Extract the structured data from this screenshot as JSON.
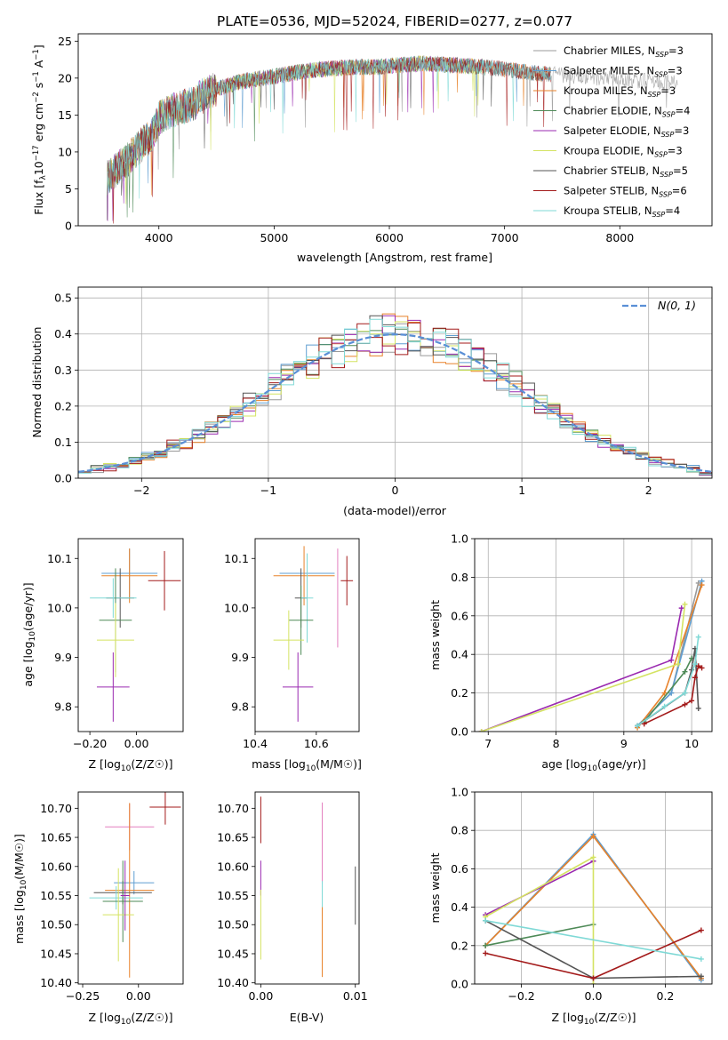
{
  "figure_title": "PLATE=0536, MJD=52024, FIBERID=0277, z=0.077",
  "model_colors": {
    "Chabrier MILES": "#999999",
    "Salpeter MILES": "#5f9ed1",
    "Kroupa MILES": "#e8822a",
    "Chabrier ELODIE": "#4e8a57",
    "Salpeter ELODIE": "#9a2ab0",
    "Kroupa ELODIE": "#d4e362",
    "Chabrier STELIB": "#555555",
    "Salpeter STELIB": "#a31a1a",
    "Kroupa STELIB": "#7fd9d6",
    "Kroupa STELIB pink": "#e37fbf",
    "normal": "#5a8fd6"
  },
  "chart_data": [
    {
      "id": "spectrum",
      "type": "line",
      "title": "PLATE=0536, MJD=52024, FIBERID=0277, z=0.077",
      "xlabel": "wavelength [Angstrom, rest frame]",
      "ylabel_parts": [
        "Flux [f",
        "λ",
        "10",
        "−17",
        " erg cm",
        "−2",
        " s",
        "−1",
        " A",
        "−1",
        "]"
      ],
      "xlim": [
        3300,
        8800
      ],
      "ylim": [
        0,
        26
      ],
      "xticks": [
        4000,
        5000,
        6000,
        7000,
        8000
      ],
      "yticks": [
        0,
        5,
        10,
        15,
        20,
        25
      ],
      "grid": false,
      "legend_position": "right",
      "envelope": {
        "x": [
          3550,
          3700,
          3850,
          3950,
          4000,
          4100,
          4200,
          4300,
          4400,
          4500,
          4700,
          4900,
          5100,
          5300,
          5500,
          5700,
          5900,
          6100,
          6300,
          6500,
          6700,
          6900,
          7100,
          7300,
          7500,
          7700,
          7900,
          8100,
          8300,
          8500
        ],
        "y": [
          6.5,
          8.5,
          11.0,
          12.5,
          14.5,
          15.5,
          16.0,
          16.5,
          18.0,
          18.5,
          19.5,
          20.0,
          20.5,
          21.0,
          21.3,
          21.5,
          21.5,
          21.8,
          22.0,
          21.8,
          21.6,
          21.4,
          21.0,
          20.6,
          20.4,
          20.1,
          19.9,
          19.7,
          19.5,
          19.3
        ]
      },
      "series": [
        {
          "name": "Chabrier MILES",
          "nssp": "3",
          "color": "#999999",
          "xmax": 8500
        },
        {
          "name": "Salpeter MILES",
          "nssp": "3",
          "color": "#5f9ed1",
          "xmax": 7400
        },
        {
          "name": "Kroupa MILES",
          "nssp": "3",
          "color": "#e8822a",
          "xmax": 7400
        },
        {
          "name": "Chabrier ELODIE",
          "nssp": "4",
          "color": "#4e8a57",
          "xmax": 6800
        },
        {
          "name": "Salpeter ELODIE",
          "nssp": "3",
          "color": "#9a2ab0",
          "xmax": 6800
        },
        {
          "name": "Kroupa ELODIE",
          "nssp": "3",
          "color": "#d4e362",
          "xmax": 6800
        },
        {
          "name": "Chabrier STELIB",
          "nssp": "5",
          "color": "#555555",
          "xmax": 7400
        },
        {
          "name": "Salpeter STELIB",
          "nssp": "6",
          "color": "#a31a1a",
          "xmax": 7400
        },
        {
          "name": "Kroupa STELIB",
          "nssp": "4",
          "color": "#7fd9d6",
          "xmax": 7400
        }
      ],
      "legend_sub": "SSP"
    },
    {
      "id": "residuals",
      "type": "line",
      "xlabel": "(data-model)/error",
      "ylabel": "Normed distribution",
      "xlim": [
        -2.5,
        2.5
      ],
      "ylim": [
        0,
        0.53
      ],
      "xticks": [
        -2,
        -1,
        0,
        1,
        2
      ],
      "yticks": [
        0.0,
        0.1,
        0.2,
        0.3,
        0.4,
        0.5
      ],
      "grid": true,
      "legend_position": "top-right",
      "legend_label": "N(0, 1)",
      "bin_width": 0.1,
      "histogram_colors": [
        "#999999",
        "#5f9ed1",
        "#e8822a",
        "#4e8a57",
        "#9a2ab0",
        "#d4e362",
        "#555555",
        "#a31a1a",
        "#7fd9d6"
      ]
    },
    {
      "id": "age_vs_z",
      "type": "scatter",
      "xlabel": "Z [log10(Z/Z☉)]",
      "ylabel": "age  [log10(age/yr)]",
      "xlim": [
        -0.25,
        0.2
      ],
      "ylim": [
        9.75,
        10.14
      ],
      "xticks": [
        -0.2,
        0.0
      ],
      "yticks": [
        9.8,
        9.9,
        10.0,
        10.1
      ],
      "points": [
        {
          "x": -0.03,
          "y": 10.07,
          "xerr": 0.12,
          "yerr": 0.05,
          "color": "#5f9ed1"
        },
        {
          "x": -0.03,
          "y": 10.065,
          "xerr": 0.12,
          "yerr": 0.055,
          "color": "#e8822a"
        },
        {
          "x": 0.12,
          "y": 10.055,
          "xerr": 0.07,
          "yerr": 0.06,
          "color": "#a31a1a"
        },
        {
          "x": -0.07,
          "y": 10.02,
          "xerr": 0.06,
          "yerr": 0.06,
          "color": "#555555"
        },
        {
          "x": -0.1,
          "y": 10.02,
          "xerr": 0.1,
          "yerr": 0.04,
          "color": "#7fd9d6"
        },
        {
          "x": -0.09,
          "y": 9.975,
          "xerr": 0.07,
          "yerr": 0.105,
          "color": "#4e8a57"
        },
        {
          "x": -0.09,
          "y": 9.935,
          "xerr": 0.08,
          "yerr": 0.075,
          "color": "#d4e362"
        },
        {
          "x": -0.1,
          "y": 9.84,
          "xerr": 0.07,
          "yerr": 0.07,
          "color": "#9a2ab0"
        }
      ]
    },
    {
      "id": "age_vs_mass",
      "type": "scatter",
      "xlabel": "mass [log10(M/M☉)]",
      "ylabel": "",
      "xlim": [
        10.4,
        10.74
      ],
      "ylim": [
        9.75,
        10.14
      ],
      "xticks": [
        10.4,
        10.6
      ],
      "yticks": [
        9.8,
        9.9,
        10.0,
        10.1
      ],
      "points": [
        {
          "x": 10.57,
          "y": 10.07,
          "xerr": 0.09,
          "yerr": 0.04,
          "color": "#5f9ed1"
        },
        {
          "x": 10.56,
          "y": 10.065,
          "xerr": 0.1,
          "yerr": 0.06,
          "color": "#e8822a"
        },
        {
          "x": 10.7,
          "y": 10.055,
          "xerr": 0.02,
          "yerr": 0.05,
          "color": "#a31a1a"
        },
        {
          "x": 10.55,
          "y": 10.02,
          "xerr": 0.02,
          "yerr": 0.06,
          "color": "#555555"
        },
        {
          "x": 10.57,
          "y": 10.02,
          "xerr": 0.02,
          "yerr": 0.09,
          "color": "#7fd9d6"
        },
        {
          "x": 10.55,
          "y": 9.975,
          "xerr": 0.04,
          "yerr": 0.07,
          "color": "#4e8a57"
        },
        {
          "x": 10.51,
          "y": 9.935,
          "xerr": 0.05,
          "yerr": 0.06,
          "color": "#d4e362"
        },
        {
          "x": 10.54,
          "y": 9.84,
          "xerr": 0.05,
          "yerr": 0.07,
          "color": "#9a2ab0"
        },
        {
          "x": 10.67,
          "y": 10.02,
          "xerr": 0.0,
          "yerr": 0.1,
          "color": "#e37fbf"
        }
      ]
    },
    {
      "id": "weight_vs_age",
      "type": "line",
      "xlabel": "age  [log10(age/yr)]",
      "ylabel": "mass weight",
      "xlim": [
        6.8,
        10.3
      ],
      "ylim": [
        0,
        1
      ],
      "xticks": [
        7,
        8,
        9,
        10
      ],
      "yticks": [
        0.0,
        0.2,
        0.4,
        0.6,
        0.8,
        1.0
      ],
      "grid": true,
      "series": [
        {
          "color": "#999999",
          "x": [
            9.2,
            9.7,
            10.1
          ],
          "y": [
            0.03,
            0.2,
            0.77
          ]
        },
        {
          "color": "#5f9ed1",
          "x": [
            9.2,
            9.7,
            10.15
          ],
          "y": [
            0.03,
            0.2,
            0.78
          ]
        },
        {
          "color": "#e8822a",
          "x": [
            9.2,
            9.6,
            10.15
          ],
          "y": [
            0.02,
            0.2,
            0.76
          ]
        },
        {
          "color": "#4e8a57",
          "x": [
            9.3,
            9.9,
            10.0
          ],
          "y": [
            0.05,
            0.31,
            0.38
          ]
        },
        {
          "color": "#9a2ab0",
          "x": [
            6.9,
            9.7,
            9.85
          ],
          "y": [
            0.0,
            0.37,
            0.64
          ]
        },
        {
          "color": "#d4e362",
          "x": [
            6.9,
            9.8,
            9.9
          ],
          "y": [
            0.0,
            0.35,
            0.66
          ]
        },
        {
          "color": "#555555",
          "x": [
            9.2,
            9.9,
            10.0,
            10.05,
            10.1
          ],
          "y": [
            0.03,
            0.2,
            0.32,
            0.43,
            0.12
          ]
        },
        {
          "color": "#a31a1a",
          "x": [
            9.3,
            9.9,
            10.0,
            10.05,
            10.1,
            10.15
          ],
          "y": [
            0.04,
            0.14,
            0.16,
            0.28,
            0.34,
            0.33
          ]
        },
        {
          "color": "#7fd9d6",
          "x": [
            9.2,
            9.6,
            9.9,
            10.05,
            10.1
          ],
          "y": [
            0.03,
            0.13,
            0.2,
            0.35,
            0.49
          ]
        }
      ]
    },
    {
      "id": "mass_vs_z",
      "type": "scatter",
      "xlabel": "Z [log10(Z/Z☉)]",
      "ylabel": "mass [log10(M/M☉)]",
      "xlim": [
        -0.27,
        0.2
      ],
      "ylim": [
        10.398,
        10.728
      ],
      "xticks": [
        -0.25,
        0.0
      ],
      "yticks": [
        10.4,
        10.45,
        10.5,
        10.55,
        10.6,
        10.65,
        10.7
      ],
      "points": [
        {
          "x": 0.12,
          "y": 10.702,
          "xerr": 0.07,
          "yerr": 0.03,
          "color": "#a31a1a"
        },
        {
          "x": -0.04,
          "y": 10.668,
          "xerr": 0.11,
          "yerr": 0.04,
          "color": "#e37fbf"
        },
        {
          "x": -0.02,
          "y": 10.572,
          "xerr": 0.09,
          "yerr": 0.02,
          "color": "#5f9ed1"
        },
        {
          "x": -0.04,
          "y": 10.559,
          "xerr": 0.11,
          "yerr": 0.15,
          "color": "#e8822a"
        },
        {
          "x": -0.07,
          "y": 10.555,
          "xerr": 0.13,
          "yerr": 0.02,
          "color": "#555555"
        },
        {
          "x": -0.1,
          "y": 10.546,
          "xerr": 0.12,
          "yerr": 0.02,
          "color": "#7fd9d6"
        },
        {
          "x": -0.07,
          "y": 10.54,
          "xerr": 0.09,
          "yerr": 0.07,
          "color": "#4e8a57"
        },
        {
          "x": -0.09,
          "y": 10.517,
          "xerr": 0.07,
          "yerr": 0.08,
          "color": "#d4e362"
        },
        {
          "x": -0.06,
          "y": 10.55,
          "xerr": 0.02,
          "yerr": 0.06,
          "color": "#9a2ab0"
        }
      ]
    },
    {
      "id": "mass_vs_ebv",
      "type": "scatter",
      "xlabel": "E(B-V)",
      "ylabel": "",
      "xlim": [
        -0.0006,
        0.0104
      ],
      "ylim": [
        10.398,
        10.728
      ],
      "xticks": [
        0.0,
        0.01
      ],
      "yticks": [
        10.4,
        10.45,
        10.5,
        10.55,
        10.6,
        10.65,
        10.7
      ],
      "points": [
        {
          "x": 0.0,
          "y": 10.68,
          "xerr": 0.0,
          "yerr": 0.04,
          "color": "#a31a1a"
        },
        {
          "x": 0.0,
          "y": 10.58,
          "xerr": 0.0,
          "yerr": 0.03,
          "color": "#9a2ab0"
        },
        {
          "x": 0.0,
          "y": 10.5,
          "xerr": 0.0,
          "yerr": 0.06,
          "color": "#d4e362"
        },
        {
          "x": 0.0065,
          "y": 10.64,
          "xerr": 0.0,
          "yerr": 0.07,
          "color": "#e37fbf"
        },
        {
          "x": 0.0065,
          "y": 10.545,
          "xerr": 0.0,
          "yerr": 0.03,
          "color": "#7fd9d6"
        },
        {
          "x": 0.0065,
          "y": 10.47,
          "xerr": 0.0,
          "yerr": 0.06,
          "color": "#e8822a"
        },
        {
          "x": 0.01,
          "y": 10.55,
          "xerr": 0.0,
          "yerr": 0.05,
          "color": "#555555"
        }
      ]
    },
    {
      "id": "weight_vs_z",
      "type": "line",
      "xlabel": "Z [log10(Z/Z☉)]",
      "ylabel": "mass weight",
      "xlim": [
        -0.33,
        0.33
      ],
      "ylim": [
        0,
        1
      ],
      "xticks": [
        -0.2,
        0.0,
        0.2
      ],
      "yticks": [
        0.0,
        0.2,
        0.4,
        0.6,
        0.8,
        1.0
      ],
      "grid": true,
      "series": [
        {
          "color": "#999999",
          "x": [
            -0.3,
            0.0,
            0.3
          ],
          "y": [
            0.2,
            0.77,
            0.03
          ]
        },
        {
          "color": "#5f9ed1",
          "x": [
            -0.3,
            0.0,
            0.3
          ],
          "y": [
            0.2,
            0.78,
            0.02
          ]
        },
        {
          "color": "#e8822a",
          "x": [
            -0.3,
            0.0,
            0.3
          ],
          "y": [
            0.2,
            0.77,
            0.03
          ]
        },
        {
          "color": "#4e8a57",
          "x": [
            -0.3,
            0.0
          ],
          "y": [
            0.2,
            0.31
          ]
        },
        {
          "color": "#9a2ab0",
          "x": [
            -0.3,
            0.0
          ],
          "y": [
            0.36,
            0.64
          ]
        },
        {
          "color": "#d4e362",
          "x": [
            -0.3,
            0.0,
            0.0
          ],
          "y": [
            0.35,
            0.66,
            0.0
          ]
        },
        {
          "color": "#555555",
          "x": [
            -0.3,
            0.0,
            0.3
          ],
          "y": [
            0.33,
            0.03,
            0.04
          ]
        },
        {
          "color": "#a31a1a",
          "x": [
            -0.3,
            0.0,
            0.3
          ],
          "y": [
            0.16,
            0.03,
            0.28
          ]
        },
        {
          "color": "#7fd9d6",
          "x": [
            -0.3,
            0.3
          ],
          "y": [
            0.33,
            0.13
          ]
        }
      ]
    }
  ]
}
